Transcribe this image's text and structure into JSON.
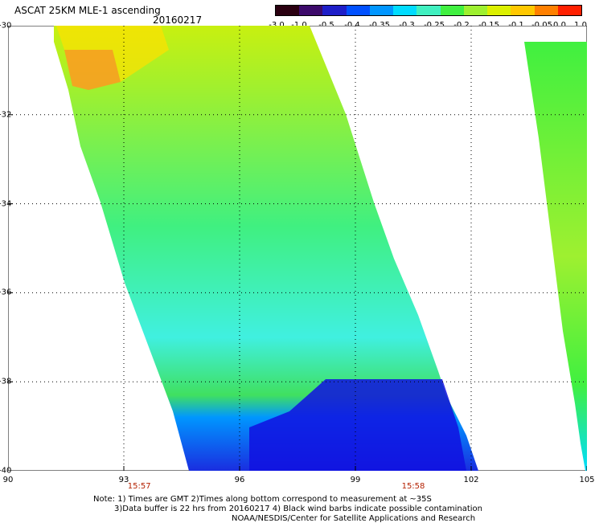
{
  "header": {
    "title": "ASCAT 25KM MLE-1 ascending",
    "date": "20160217"
  },
  "colorbar": {
    "labels": [
      "-3.0",
      "-1.0",
      "-0.5",
      "-0.4",
      "-0.35",
      "-0.3",
      "-0.25",
      "-0.2",
      "-0.15",
      "-0.1",
      "-0.05",
      "0.0",
      "1.0"
    ],
    "colors": [
      "#2a0010",
      "#3c0a6a",
      "#1e1ec8",
      "#0050ff",
      "#0096ff",
      "#00dcff",
      "#40f0c0",
      "#40f040",
      "#9ef030",
      "#dcf000",
      "#ffc800",
      "#ff8000",
      "#ff2000"
    ]
  },
  "map": {
    "lon_ticks": [
      "90",
      "93",
      "96",
      "99",
      "102",
      "105"
    ],
    "lat_ticks": [
      "-30",
      "-32",
      "-34",
      "-36",
      "-38",
      "-40"
    ],
    "lon_range": [
      90,
      105
    ],
    "lat_range": [
      -40,
      -30
    ],
    "time_labels": [
      {
        "text": "15:57",
        "lon": 93.4
      },
      {
        "text": "15:58",
        "lon": 100.5
      }
    ]
  },
  "notes": {
    "line1": "Note: 1) Times are GMT 2)Times along bottom correspond to measurement at ~35S",
    "line2": "3)Data buffer is 22 hrs from 20160217 4) Black wind barbs indicate possible contamination",
    "line3": "NOAA/NESDIS/Center for Satellite Applications and Research"
  }
}
